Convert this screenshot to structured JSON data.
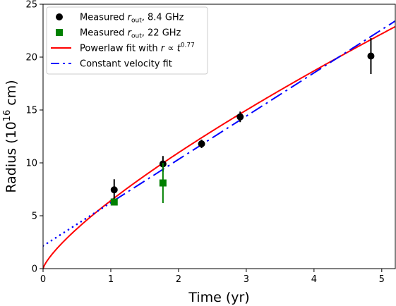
{
  "chart_data": {
    "type": "scatter",
    "xlabel": "Time (yr)",
    "ylabel_prefix": "Radius (10",
    "ylabel_exp": "16",
    "ylabel_suffix": " cm)",
    "xlim": [
      0,
      5.2
    ],
    "ylim": [
      0,
      25
    ],
    "xticks": [
      "0",
      "1",
      "2",
      "3",
      "4",
      "5"
    ],
    "yticks": [
      "0",
      "5",
      "10",
      "15",
      "20",
      "25"
    ],
    "grid": false,
    "legend_position": "top-left",
    "series": [
      {
        "name": "Measured r_out, 8.4 GHz",
        "legend_parts": [
          "Measured ",
          "r",
          "out",
          ", 8.4 GHz"
        ],
        "marker": "circle",
        "color": "#000000",
        "points": [
          {
            "x": 1.05,
            "y": 7.45,
            "err": 1.0
          },
          {
            "x": 1.77,
            "y": 9.9,
            "err": 0.75
          },
          {
            "x": 2.34,
            "y": 11.8,
            "err": 0.4
          },
          {
            "x": 2.91,
            "y": 14.35,
            "err": 0.5
          },
          {
            "x": 4.84,
            "y": 20.1,
            "err": 1.7
          }
        ]
      },
      {
        "name": "Measured r_out, 22 GHz",
        "legend_parts": [
          "Measured ",
          "r",
          "out",
          ", 22 GHz"
        ],
        "marker": "square",
        "color": "#008000",
        "points": [
          {
            "x": 1.05,
            "y": 6.3,
            "err": 0.1
          },
          {
            "x": 1.77,
            "y": 8.1,
            "err": 1.9
          }
        ]
      },
      {
        "name": "Powerlaw fit with r ∝ t^0.77",
        "legend_parts": [
          "Powerlaw fit with ",
          "r",
          " ∝ ",
          "t",
          "0.77"
        ],
        "type": "powerlaw",
        "color": "#ff0000",
        "coefficient": 6.43,
        "exponent": 0.77
      },
      {
        "name": "Constant velocity fit",
        "legend_parts": [
          "Constant velocity fit"
        ],
        "type": "linear",
        "color": "#0000ff",
        "intercept": 2.15,
        "slope": 4.09,
        "dotted_until_x": 1.05
      }
    ]
  }
}
